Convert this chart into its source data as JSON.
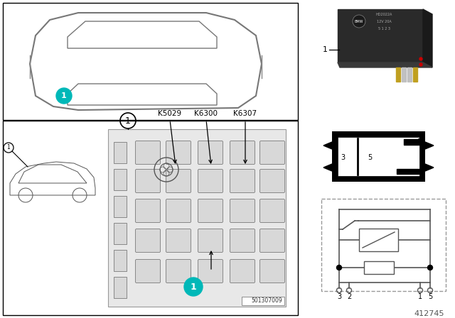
{
  "bg": "#ffffff",
  "black": "#000000",
  "gray": "#aaaaaa",
  "darkgray": "#666666",
  "lightgray": "#cccccc",
  "teal": "#00b8b8",
  "relay_labels": [
    "K5029",
    "K6300",
    "K6307"
  ],
  "fuse_code": "501307009",
  "diagram_num": "412745"
}
